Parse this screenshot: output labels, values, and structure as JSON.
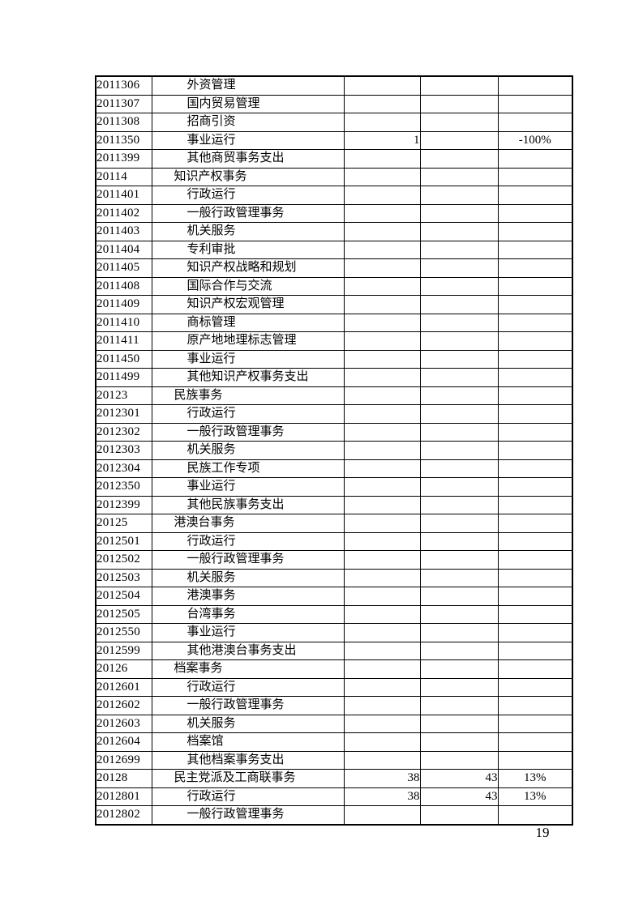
{
  "page": {
    "number": "19",
    "background_color": "#ffffff",
    "text_color": "#000000",
    "line_color": "#000000"
  },
  "table": {
    "rows": [
      {
        "code": "2011306",
        "indent": 3,
        "name": "外资管理",
        "v1": "",
        "v2": "",
        "v3": ""
      },
      {
        "code": "2011307",
        "indent": 3,
        "name": "国内贸易管理",
        "v1": "",
        "v2": "",
        "v3": ""
      },
      {
        "code": "2011308",
        "indent": 3,
        "name": "招商引资",
        "v1": "",
        "v2": "",
        "v3": ""
      },
      {
        "code": "2011350",
        "indent": 3,
        "name": "事业运行",
        "v1": "1",
        "v2": "",
        "v3": "-100%"
      },
      {
        "code": "2011399",
        "indent": 3,
        "name": "其他商贸事务支出",
        "v1": "",
        "v2": "",
        "v3": ""
      },
      {
        "code": "20114",
        "indent": 2,
        "name": "知识产权事务",
        "v1": "",
        "v2": "",
        "v3": ""
      },
      {
        "code": "2011401",
        "indent": 3,
        "name": "行政运行",
        "v1": "",
        "v2": "",
        "v3": ""
      },
      {
        "code": "2011402",
        "indent": 3,
        "name": "一般行政管理事务",
        "v1": "",
        "v2": "",
        "v3": ""
      },
      {
        "code": "2011403",
        "indent": 3,
        "name": "机关服务",
        "v1": "",
        "v2": "",
        "v3": ""
      },
      {
        "code": "2011404",
        "indent": 3,
        "name": "专利审批",
        "v1": "",
        "v2": "",
        "v3": ""
      },
      {
        "code": "2011405",
        "indent": 3,
        "name": "知识产权战略和规划",
        "v1": "",
        "v2": "",
        "v3": ""
      },
      {
        "code": "2011408",
        "indent": 3,
        "name": "国际合作与交流",
        "v1": "",
        "v2": "",
        "v3": ""
      },
      {
        "code": "2011409",
        "indent": 3,
        "name": "知识产权宏观管理",
        "v1": "",
        "v2": "",
        "v3": ""
      },
      {
        "code": "2011410",
        "indent": 3,
        "name": "商标管理",
        "v1": "",
        "v2": "",
        "v3": ""
      },
      {
        "code": "2011411",
        "indent": 3,
        "name": "原产地地理标志管理",
        "v1": "",
        "v2": "",
        "v3": ""
      },
      {
        "code": "2011450",
        "indent": 3,
        "name": "事业运行",
        "v1": "",
        "v2": "",
        "v3": ""
      },
      {
        "code": "2011499",
        "indent": 3,
        "name": "其他知识产权事务支出",
        "v1": "",
        "v2": "",
        "v3": ""
      },
      {
        "code": "20123",
        "indent": 2,
        "name": "民族事务",
        "v1": "",
        "v2": "",
        "v3": ""
      },
      {
        "code": "2012301",
        "indent": 3,
        "name": "行政运行",
        "v1": "",
        "v2": "",
        "v3": ""
      },
      {
        "code": "2012302",
        "indent": 3,
        "name": "一般行政管理事务",
        "v1": "",
        "v2": "",
        "v3": ""
      },
      {
        "code": "2012303",
        "indent": 3,
        "name": "机关服务",
        "v1": "",
        "v2": "",
        "v3": ""
      },
      {
        "code": "2012304",
        "indent": 3,
        "name": "民族工作专项",
        "v1": "",
        "v2": "",
        "v3": ""
      },
      {
        "code": "2012350",
        "indent": 3,
        "name": "事业运行",
        "v1": "",
        "v2": "",
        "v3": ""
      },
      {
        "code": "2012399",
        "indent": 3,
        "name": "其他民族事务支出",
        "v1": "",
        "v2": "",
        "v3": ""
      },
      {
        "code": "20125",
        "indent": 2,
        "name": "港澳台事务",
        "v1": "",
        "v2": "",
        "v3": ""
      },
      {
        "code": "2012501",
        "indent": 3,
        "name": "行政运行",
        "v1": "",
        "v2": "",
        "v3": ""
      },
      {
        "code": "2012502",
        "indent": 3,
        "name": "一般行政管理事务",
        "v1": "",
        "v2": "",
        "v3": ""
      },
      {
        "code": "2012503",
        "indent": 3,
        "name": "机关服务",
        "v1": "",
        "v2": "",
        "v3": ""
      },
      {
        "code": "2012504",
        "indent": 3,
        "name": "港澳事务",
        "v1": "",
        "v2": "",
        "v3": ""
      },
      {
        "code": "2012505",
        "indent": 3,
        "name": "台湾事务",
        "v1": "",
        "v2": "",
        "v3": ""
      },
      {
        "code": "2012550",
        "indent": 3,
        "name": "事业运行",
        "v1": "",
        "v2": "",
        "v3": ""
      },
      {
        "code": "2012599",
        "indent": 3,
        "name": "其他港澳台事务支出",
        "v1": "",
        "v2": "",
        "v3": ""
      },
      {
        "code": "20126",
        "indent": 2,
        "name": "档案事务",
        "v1": "",
        "v2": "",
        "v3": ""
      },
      {
        "code": "2012601",
        "indent": 3,
        "name": "行政运行",
        "v1": "",
        "v2": "",
        "v3": ""
      },
      {
        "code": "2012602",
        "indent": 3,
        "name": "一般行政管理事务",
        "v1": "",
        "v2": "",
        "v3": ""
      },
      {
        "code": "2012603",
        "indent": 3,
        "name": "机关服务",
        "v1": "",
        "v2": "",
        "v3": ""
      },
      {
        "code": "2012604",
        "indent": 3,
        "name": "档案馆",
        "v1": "",
        "v2": "",
        "v3": ""
      },
      {
        "code": "2012699",
        "indent": 3,
        "name": "其他档案事务支出",
        "v1": "",
        "v2": "",
        "v3": ""
      },
      {
        "code": "20128",
        "indent": 2,
        "name": "民主党派及工商联事务",
        "v1": "38",
        "v2": "43",
        "v3": "13%"
      },
      {
        "code": "2012801",
        "indent": 3,
        "name": "行政运行",
        "v1": "38",
        "v2": "43",
        "v3": "13%"
      },
      {
        "code": "2012802",
        "indent": 3,
        "name": "一般行政管理事务",
        "v1": "",
        "v2": "",
        "v3": ""
      }
    ]
  }
}
